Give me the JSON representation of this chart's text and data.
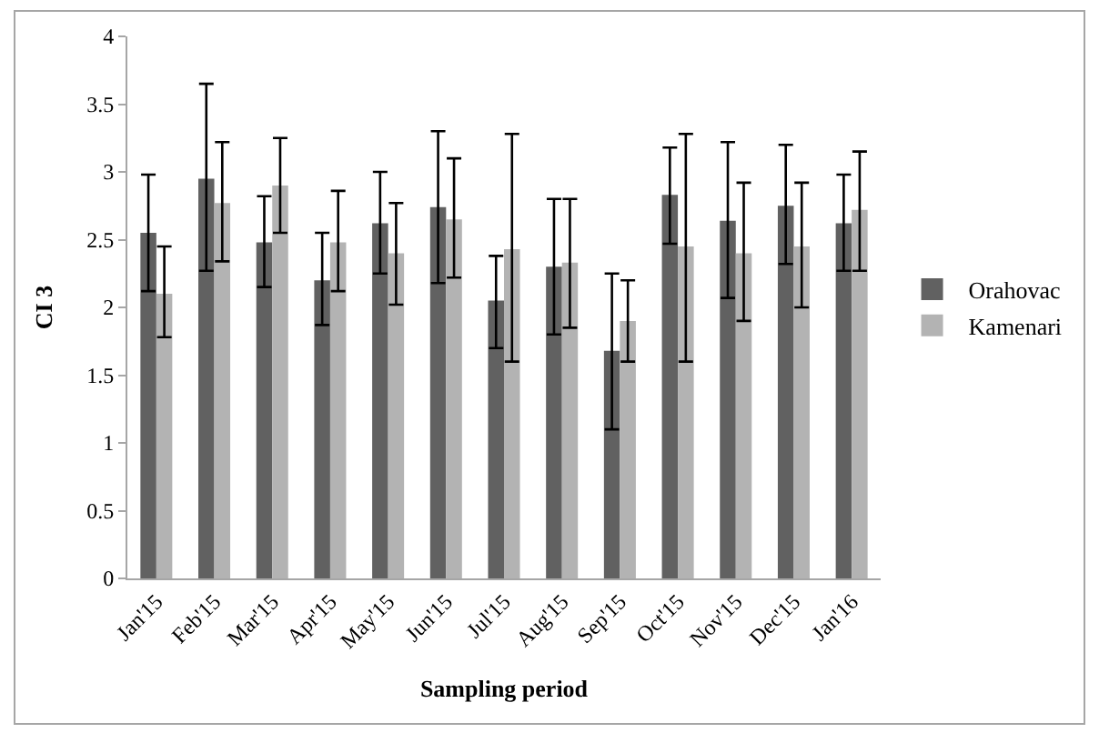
{
  "chart_data": {
    "type": "bar",
    "xlabel": "Sampling period",
    "ylabel": "CI 3",
    "categories": [
      "Jan'15",
      "Feb'15",
      "Mar'15",
      "Apr'15",
      "May'15",
      "Jun'15",
      "Jul'15",
      "Aug'15",
      "Sep'15",
      "Oct'15",
      "Nov'15",
      "Dec'15",
      "Jan'16"
    ],
    "series": [
      {
        "name": "Orahovac",
        "color": "#616161",
        "values": [
          2.55,
          2.95,
          2.48,
          2.2,
          2.62,
          2.74,
          2.05,
          2.3,
          1.68,
          2.83,
          2.64,
          2.75,
          2.62
        ],
        "errors": [
          [
            2.12,
            2.98
          ],
          [
            2.27,
            3.65
          ],
          [
            2.15,
            2.82
          ],
          [
            1.87,
            2.55
          ],
          [
            2.25,
            3.0
          ],
          [
            2.18,
            3.3
          ],
          [
            1.7,
            2.38
          ],
          [
            1.8,
            2.8
          ],
          [
            1.1,
            2.25
          ],
          [
            2.47,
            3.18
          ],
          [
            2.07,
            3.22
          ],
          [
            2.32,
            3.2
          ],
          [
            2.27,
            2.98
          ]
        ]
      },
      {
        "name": "Kamenari",
        "color": "#b3b3b3",
        "values": [
          2.1,
          2.77,
          2.9,
          2.48,
          2.4,
          2.65,
          2.43,
          2.33,
          1.9,
          2.45,
          2.4,
          2.45,
          2.72
        ],
        "errors": [
          [
            1.78,
            2.45
          ],
          [
            2.34,
            3.22
          ],
          [
            2.55,
            3.25
          ],
          [
            2.12,
            2.86
          ],
          [
            2.02,
            2.77
          ],
          [
            2.22,
            3.1
          ],
          [
            1.6,
            3.28
          ],
          [
            1.85,
            2.8
          ],
          [
            1.6,
            2.2
          ],
          [
            1.6,
            3.28
          ],
          [
            1.9,
            2.92
          ],
          [
            2.0,
            2.92
          ],
          [
            2.27,
            3.15
          ]
        ]
      }
    ],
    "ylim": [
      0,
      4
    ],
    "yticks": [
      0,
      0.5,
      1,
      1.5,
      2,
      2.5,
      3,
      3.5,
      4
    ],
    "legend": "right"
  }
}
